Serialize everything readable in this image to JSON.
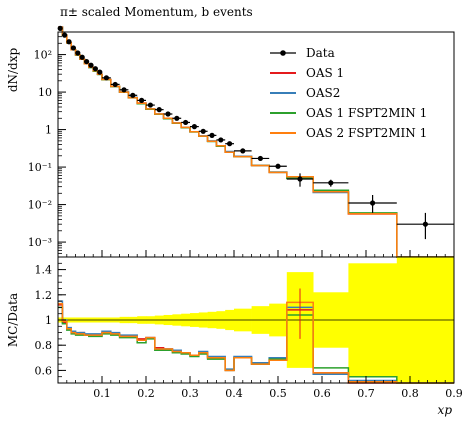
{
  "title": "π± scaled Momentum, b events",
  "colors": {
    "data": "#000000",
    "oas1": "#e41a1c",
    "oas2": "#377eb8",
    "oas1_fspt2min1": "#2ca02c",
    "oas2_fspt2min1": "#ff7f0e",
    "band": "#ffff00"
  },
  "chart_data": [
    {
      "type": "line",
      "panel": "main",
      "title": "π± scaled Momentum, b events",
      "xlabel": "",
      "ylabel": "dN/dxp",
      "yscale": "log",
      "xlim": [
        0.0,
        0.9
      ],
      "ylim": [
        0.0004,
        400
      ],
      "ytick_labels": [
        "10²",
        "10",
        "1",
        "10⁻¹",
        "10⁻²",
        "10⁻³"
      ],
      "legend_position": "top-right",
      "series": [
        {
          "name": "Data",
          "kind": "points",
          "points": [
            {
              "x": 0.005,
              "y": 500,
              "xerr": 0.005
            },
            {
              "x": 0.015,
              "y": 330,
              "xerr": 0.005
            },
            {
              "x": 0.025,
              "y": 220,
              "xerr": 0.005
            },
            {
              "x": 0.035,
              "y": 150,
              "xerr": 0.005
            },
            {
              "x": 0.045,
              "y": 110,
              "xerr": 0.005
            },
            {
              "x": 0.055,
              "y": 85,
              "xerr": 0.005
            },
            {
              "x": 0.065,
              "y": 65,
              "xerr": 0.005
            },
            {
              "x": 0.075,
              "y": 52,
              "xerr": 0.005
            },
            {
              "x": 0.085,
              "y": 42,
              "xerr": 0.005
            },
            {
              "x": 0.095,
              "y": 34,
              "xerr": 0.005
            },
            {
              "x": 0.11,
              "y": 24,
              "xerr": 0.01
            },
            {
              "x": 0.13,
              "y": 16,
              "xerr": 0.01
            },
            {
              "x": 0.15,
              "y": 11.5,
              "xerr": 0.01
            },
            {
              "x": 0.17,
              "y": 8.2,
              "xerr": 0.01
            },
            {
              "x": 0.19,
              "y": 6,
              "xerr": 0.01
            },
            {
              "x": 0.21,
              "y": 4.5,
              "xerr": 0.01
            },
            {
              "x": 0.23,
              "y": 3.4,
              "xerr": 0.01
            },
            {
              "x": 0.25,
              "y": 2.6,
              "xerr": 0.01
            },
            {
              "x": 0.27,
              "y": 2.0,
              "xerr": 0.01
            },
            {
              "x": 0.29,
              "y": 1.55,
              "xerr": 0.01
            },
            {
              "x": 0.31,
              "y": 1.2,
              "xerr": 0.01
            },
            {
              "x": 0.33,
              "y": 0.9,
              "xerr": 0.01
            },
            {
              "x": 0.35,
              "y": 0.7,
              "xerr": 0.01
            },
            {
              "x": 0.37,
              "y": 0.53,
              "xerr": 0.01
            },
            {
              "x": 0.39,
              "y": 0.42,
              "xerr": 0.01
            },
            {
              "x": 0.42,
              "y": 0.27,
              "xerr": 0.02
            },
            {
              "x": 0.46,
              "y": 0.17,
              "xerr": 0.02
            },
            {
              "x": 0.5,
              "y": 0.105,
              "xerr": 0.02
            },
            {
              "x": 0.55,
              "y": 0.048,
              "xerr": 0.03,
              "yerr_lo": 0.018,
              "yerr_hi": 0.02
            },
            {
              "x": 0.62,
              "y": 0.038,
              "xerr": 0.04,
              "yerr_lo": 0.008,
              "yerr_hi": 0.008
            },
            {
              "x": 0.715,
              "y": 0.011,
              "xerr": 0.055,
              "yerr_lo": 0.005,
              "yerr_hi": 0.007
            },
            {
              "x": 0.835,
              "y": 0.003,
              "xerr": 0.065,
              "yerr_lo": 0.0018,
              "yerr_hi": 0.003
            }
          ]
        },
        {
          "name": "OAS 1",
          "kind": "hist",
          "color": "#e41a1c",
          "edges": [
            0.0,
            0.01,
            0.02,
            0.03,
            0.04,
            0.05,
            0.06,
            0.07,
            0.08,
            0.09,
            0.1,
            0.12,
            0.14,
            0.16,
            0.18,
            0.2,
            0.22,
            0.24,
            0.26,
            0.28,
            0.3,
            0.32,
            0.34,
            0.36,
            0.38,
            0.4,
            0.44,
            0.48,
            0.52,
            0.58,
            0.66,
            0.77,
            0.9
          ],
          "values": [
            540,
            330,
            205,
            135,
            98,
            75,
            57,
            46,
            37,
            30,
            21.5,
            14.2,
            10,
            7.1,
            5.1,
            3.5,
            2.6,
            2.0,
            1.5,
            1.14,
            0.87,
            0.67,
            0.49,
            0.37,
            0.25,
            0.19,
            0.11,
            0.072,
            0.052,
            0.022,
            0.0056,
            0.00032
          ]
        },
        {
          "name": "OAS2",
          "kind": "hist",
          "color": "#377eb8",
          "edges": [
            0.0,
            0.01,
            0.02,
            0.03,
            0.04,
            0.05,
            0.06,
            0.07,
            0.08,
            0.09,
            0.1,
            0.12,
            0.14,
            0.16,
            0.18,
            0.2,
            0.22,
            0.24,
            0.26,
            0.28,
            0.3,
            0.32,
            0.34,
            0.36,
            0.38,
            0.4,
            0.44,
            0.48,
            0.52,
            0.58,
            0.66,
            0.77,
            0.9
          ],
          "values": [
            545,
            332,
            207,
            136,
            99,
            76,
            58,
            46,
            37,
            30,
            21.7,
            14.3,
            10.1,
            7.2,
            5.0,
            3.6,
            2.6,
            2.0,
            1.5,
            1.15,
            0.88,
            0.68,
            0.5,
            0.37,
            0.26,
            0.195,
            0.112,
            0.074,
            0.053,
            0.021,
            0.0058,
            0.00032
          ]
        },
        {
          "name": "OAS 1 FSPT2MIN 1",
          "kind": "hist",
          "color": "#2ca02c",
          "edges": [
            0.0,
            0.01,
            0.02,
            0.03,
            0.04,
            0.05,
            0.06,
            0.07,
            0.08,
            0.09,
            0.1,
            0.12,
            0.14,
            0.16,
            0.18,
            0.2,
            0.22,
            0.24,
            0.26,
            0.28,
            0.3,
            0.32,
            0.34,
            0.36,
            0.38,
            0.4,
            0.44,
            0.48,
            0.52,
            0.58,
            0.66,
            0.77,
            0.9
          ],
          "values": [
            538,
            328,
            204,
            134,
            97,
            75,
            57,
            45,
            36,
            29.5,
            21.2,
            14.0,
            9.9,
            7.0,
            4.9,
            3.5,
            2.55,
            1.95,
            1.48,
            1.12,
            0.86,
            0.66,
            0.48,
            0.36,
            0.25,
            0.188,
            0.11,
            0.072,
            0.05,
            0.024,
            0.006,
            0.00033
          ]
        },
        {
          "name": "OAS 2 FSPT2MIN 1",
          "kind": "hist",
          "color": "#ff7f0e",
          "edges": [
            0.0,
            0.01,
            0.02,
            0.03,
            0.04,
            0.05,
            0.06,
            0.07,
            0.08,
            0.09,
            0.1,
            0.12,
            0.14,
            0.16,
            0.18,
            0.2,
            0.22,
            0.24,
            0.26,
            0.28,
            0.3,
            0.32,
            0.34,
            0.36,
            0.38,
            0.4,
            0.44,
            0.48,
            0.52,
            0.58,
            0.66,
            0.77,
            0.9
          ],
          "values": [
            542,
            331,
            206,
            135,
            98,
            75,
            57,
            46,
            37,
            30,
            21.6,
            14.2,
            10,
            7.1,
            5.05,
            3.55,
            2.6,
            2.0,
            1.5,
            1.14,
            0.87,
            0.67,
            0.49,
            0.37,
            0.25,
            0.19,
            0.11,
            0.072,
            0.055,
            0.022,
            0.0057,
            0.00032
          ]
        }
      ]
    },
    {
      "type": "line",
      "panel": "ratio",
      "xlabel": "xp",
      "ylabel": "MC/Data",
      "xlim": [
        0.0,
        0.9
      ],
      "ylim": [
        0.5,
        1.5
      ],
      "xtick_labels": [
        "0.1",
        "0.2",
        "0.3",
        "0.4",
        "0.5",
        "0.6",
        "0.7",
        "0.8",
        "0.9"
      ],
      "ytick_labels": [
        "1.4",
        "1.2",
        "1",
        "0.8",
        "0.6"
      ],
      "band": {
        "name": "Data uncertainty",
        "color": "#ffff00",
        "edges": [
          0.0,
          0.01,
          0.02,
          0.03,
          0.04,
          0.05,
          0.06,
          0.07,
          0.08,
          0.09,
          0.1,
          0.12,
          0.14,
          0.16,
          0.18,
          0.2,
          0.22,
          0.24,
          0.26,
          0.28,
          0.3,
          0.32,
          0.34,
          0.36,
          0.38,
          0.4,
          0.44,
          0.48,
          0.52,
          0.58,
          0.66,
          0.77,
          0.9
        ],
        "half_width": [
          0.02,
          0.02,
          0.02,
          0.02,
          0.02,
          0.02,
          0.02,
          0.02,
          0.02,
          0.02,
          0.02,
          0.02,
          0.025,
          0.025,
          0.03,
          0.03,
          0.035,
          0.04,
          0.045,
          0.05,
          0.055,
          0.06,
          0.065,
          0.07,
          0.08,
          0.09,
          0.11,
          0.13,
          0.38,
          0.22,
          0.45,
          0.6
        ]
      },
      "series": [
        {
          "name": "OAS 1",
          "color": "#e41a1c",
          "values": [
            1.12,
            0.98,
            0.93,
            0.9,
            0.89,
            0.9,
            0.88,
            0.88,
            0.88,
            0.88,
            0.9,
            0.89,
            0.87,
            0.87,
            0.85,
            0.86,
            0.78,
            0.77,
            0.75,
            0.74,
            0.72,
            0.74,
            0.7,
            0.7,
            0.6,
            0.7,
            0.65,
            0.68,
            1.08,
            0.58,
            0.5,
            0.1
          ]
        },
        {
          "name": "OAS2",
          "color": "#377eb8",
          "values": [
            1.15,
            1.0,
            0.94,
            0.91,
            0.9,
            0.9,
            0.89,
            0.89,
            0.89,
            0.89,
            0.91,
            0.9,
            0.88,
            0.88,
            0.84,
            0.86,
            0.77,
            0.77,
            0.76,
            0.74,
            0.72,
            0.75,
            0.71,
            0.71,
            0.61,
            0.71,
            0.66,
            0.7,
            1.1,
            0.57,
            0.52,
            0.1
          ]
        },
        {
          "name": "OAS 1 FSPT2MIN 1",
          "color": "#2ca02c",
          "values": [
            1.1,
            0.97,
            0.92,
            0.89,
            0.88,
            0.88,
            0.88,
            0.87,
            0.87,
            0.87,
            0.89,
            0.88,
            0.86,
            0.86,
            0.82,
            0.85,
            0.76,
            0.76,
            0.74,
            0.73,
            0.71,
            0.73,
            0.69,
            0.69,
            0.6,
            0.7,
            0.65,
            0.69,
            1.04,
            0.62,
            0.55,
            0.1
          ]
        },
        {
          "name": "OAS 2 FSPT2MIN 1",
          "color": "#ff7f0e",
          "values": [
            1.13,
            0.99,
            0.93,
            0.9,
            0.89,
            0.89,
            0.88,
            0.88,
            0.88,
            0.88,
            0.9,
            0.89,
            0.87,
            0.87,
            0.84,
            0.86,
            0.77,
            0.77,
            0.75,
            0.74,
            0.72,
            0.74,
            0.7,
            0.7,
            0.6,
            0.7,
            0.65,
            0.68,
            1.14,
            0.58,
            0.51,
            0.1
          ]
        }
      ]
    }
  ]
}
